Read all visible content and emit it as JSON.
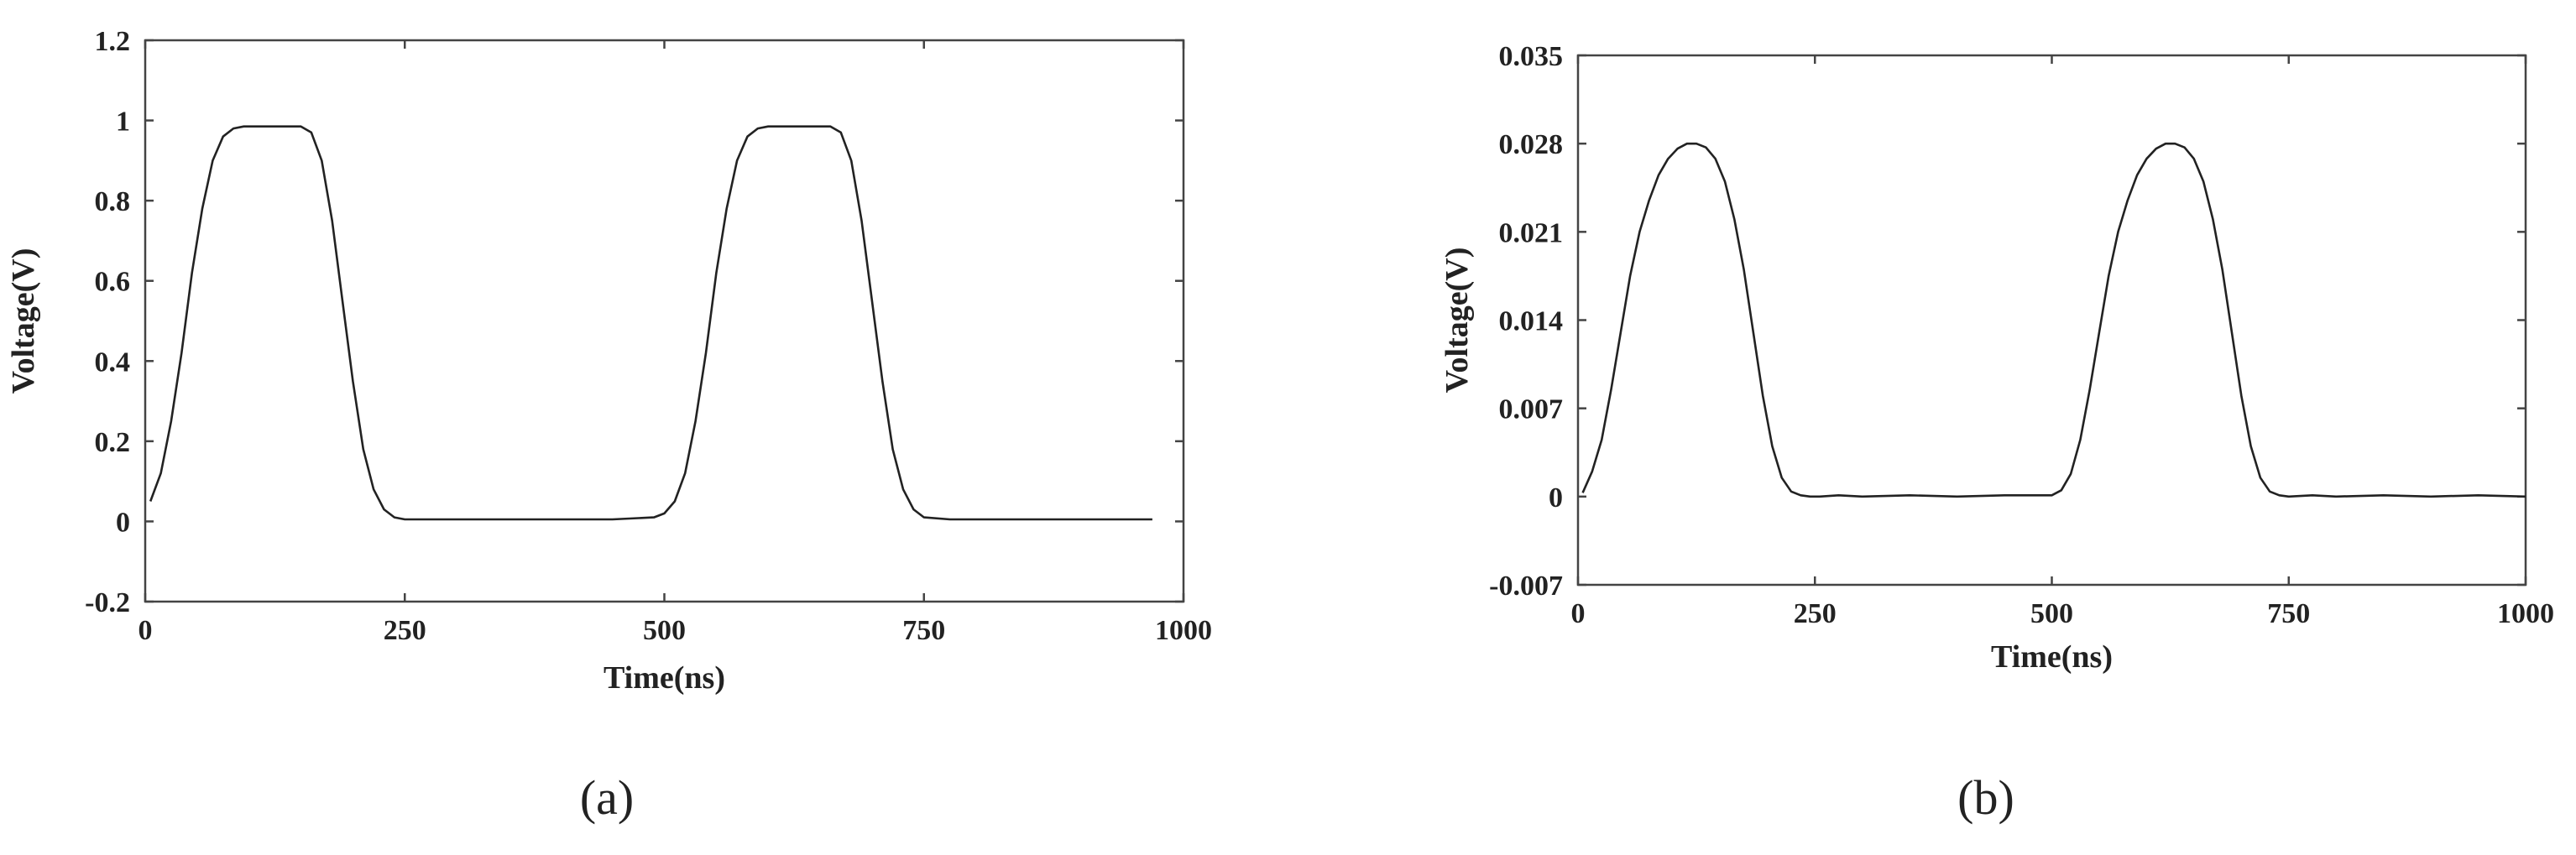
{
  "chart_data": [
    {
      "type": "line",
      "panel_label": "(a)",
      "xlabel": "Time(ns)",
      "ylabel": "Voltage(V)",
      "xlim": [
        0,
        1000
      ],
      "ylim": [
        -0.2,
        1.2
      ],
      "xticks": [
        0,
        250,
        500,
        750,
        1000
      ],
      "xtick_labels": [
        "0",
        "250",
        "500",
        "750",
        "1000"
      ],
      "yticks": [
        -0.2,
        0,
        0.2,
        0.4,
        0.6,
        0.8,
        1,
        1.2
      ],
      "ytick_labels": [
        "-0.2",
        "0",
        "0.2",
        "0.4",
        "0.6",
        "0.8",
        "1",
        "1.2"
      ],
      "grid": false,
      "series": [
        {
          "x": [
            5,
            15,
            25,
            35,
            45,
            55,
            65,
            75,
            85,
            95,
            105,
            120,
            135,
            150,
            160,
            170,
            180,
            190,
            200,
            210,
            220,
            230,
            240,
            250,
            275,
            300,
            350,
            400,
            450,
            490,
            500,
            510,
            520,
            530,
            540,
            550,
            560,
            570,
            580,
            590,
            600,
            620,
            640,
            660,
            670,
            680,
            690,
            700,
            710,
            720,
            730,
            740,
            750,
            775,
            800,
            850,
            900,
            950,
            970
          ],
          "y": [
            0.05,
            0.12,
            0.25,
            0.42,
            0.62,
            0.78,
            0.9,
            0.96,
            0.98,
            0.985,
            0.985,
            0.985,
            0.985,
            0.985,
            0.97,
            0.9,
            0.75,
            0.55,
            0.35,
            0.18,
            0.08,
            0.03,
            0.01,
            0.005,
            0.005,
            0.005,
            0.005,
            0.005,
            0.005,
            0.01,
            0.02,
            0.05,
            0.12,
            0.25,
            0.42,
            0.62,
            0.78,
            0.9,
            0.96,
            0.98,
            0.985,
            0.985,
            0.985,
            0.985,
            0.97,
            0.9,
            0.75,
            0.55,
            0.35,
            0.18,
            0.08,
            0.03,
            0.01,
            0.005,
            0.005,
            0.005,
            0.005,
            0.005,
            0.005
          ]
        }
      ]
    },
    {
      "type": "line",
      "panel_label": "(b)",
      "xlabel": "Time(ns)",
      "ylabel": "Voltage(V)",
      "xlim": [
        0,
        1000
      ],
      "ylim": [
        -0.007,
        0.035
      ],
      "xticks": [
        0,
        250,
        500,
        750,
        1000
      ],
      "xtick_labels": [
        "0",
        "250",
        "500",
        "750",
        "1000"
      ],
      "yticks": [
        -0.007,
        0,
        0.007,
        0.014,
        0.021,
        0.028,
        0.035
      ],
      "ytick_labels": [
        "-0.007",
        "0",
        "0.007",
        "0.014",
        "0.021",
        "0.028",
        "0.035"
      ],
      "grid": false,
      "series": [
        {
          "x": [
            5,
            15,
            25,
            35,
            45,
            55,
            65,
            75,
            85,
            95,
            105,
            115,
            125,
            135,
            145,
            155,
            165,
            175,
            185,
            195,
            205,
            215,
            225,
            235,
            245,
            255,
            275,
            300,
            350,
            400,
            450,
            500,
            510,
            520,
            530,
            540,
            550,
            560,
            570,
            580,
            590,
            600,
            610,
            620,
            630,
            640,
            650,
            660,
            670,
            680,
            690,
            700,
            710,
            720,
            730,
            740,
            750,
            775,
            800,
            850,
            900,
            950,
            1000
          ],
          "y": [
            0.0003,
            0.002,
            0.0045,
            0.0085,
            0.013,
            0.0175,
            0.021,
            0.0235,
            0.0255,
            0.0268,
            0.0276,
            0.028,
            0.028,
            0.0277,
            0.0268,
            0.025,
            0.022,
            0.018,
            0.013,
            0.008,
            0.004,
            0.0015,
            0.0004,
            0.0001,
            0.0,
            0.0,
            0.0001,
            0.0,
            0.0001,
            0.0,
            0.0001,
            0.0001,
            0.0005,
            0.0018,
            0.0045,
            0.0085,
            0.013,
            0.0175,
            0.021,
            0.0235,
            0.0255,
            0.0268,
            0.0276,
            0.028,
            0.028,
            0.0277,
            0.0268,
            0.025,
            0.022,
            0.018,
            0.013,
            0.008,
            0.004,
            0.0015,
            0.0004,
            0.0001,
            0.0,
            0.0001,
            0.0,
            0.0001,
            0.0,
            0.0001,
            0.0
          ]
        }
      ]
    }
  ]
}
